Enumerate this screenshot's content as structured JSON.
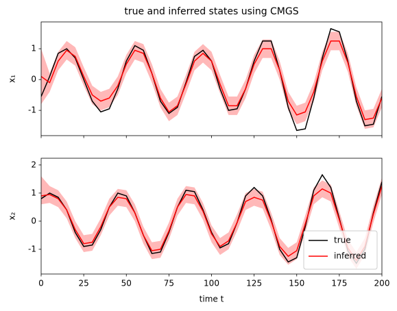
{
  "chart_data": [
    {
      "type": "line",
      "title": "true and inferred states using CMGS",
      "ylabel": "x₁",
      "x": [
        0,
        5,
        10,
        15,
        20,
        25,
        30,
        35,
        40,
        45,
        50,
        55,
        60,
        65,
        70,
        75,
        80,
        85,
        90,
        95,
        100,
        105,
        110,
        115,
        120,
        125,
        130,
        135,
        140,
        145,
        150,
        155,
        160,
        165,
        170,
        175,
        180,
        185,
        190,
        195,
        200
      ],
      "series": [
        {
          "name": "true",
          "color": "#000000",
          "values": [
            -0.55,
            0.1,
            0.85,
            1.0,
            0.7,
            0.0,
            -0.7,
            -1.05,
            -0.95,
            -0.3,
            0.6,
            1.1,
            0.95,
            0.2,
            -0.7,
            -1.1,
            -0.9,
            -0.1,
            0.75,
            0.95,
            0.6,
            -0.3,
            -1.0,
            -0.95,
            -0.3,
            0.6,
            1.25,
            1.25,
            0.3,
            -0.9,
            -1.65,
            -1.6,
            -0.6,
            0.7,
            1.65,
            1.55,
            0.6,
            -0.7,
            -1.5,
            -1.45,
            -0.55
          ]
        },
        {
          "name": "inferred",
          "color": "#ff0000",
          "values": [
            0.1,
            -0.1,
            0.6,
            0.95,
            0.75,
            0.1,
            -0.5,
            -0.7,
            -0.6,
            -0.2,
            0.5,
            0.95,
            0.85,
            0.2,
            -0.6,
            -1.05,
            -0.85,
            -0.15,
            0.6,
            0.85,
            0.6,
            -0.15,
            -0.85,
            -0.85,
            -0.3,
            0.5,
            1.0,
            1.0,
            0.3,
            -0.7,
            -1.15,
            -1.05,
            -0.4,
            0.6,
            1.25,
            1.25,
            0.55,
            -0.55,
            -1.3,
            -1.25,
            -0.6
          ]
        }
      ],
      "band": {
        "color": "#ff0000",
        "lower": [
          -0.8,
          -0.4,
          0.3,
          0.65,
          0.45,
          -0.2,
          -0.8,
          -1.0,
          -0.9,
          -0.5,
          0.2,
          0.65,
          0.55,
          -0.1,
          -0.9,
          -1.35,
          -1.15,
          -0.45,
          0.3,
          0.55,
          0.3,
          -0.45,
          -1.15,
          -1.15,
          -0.6,
          0.2,
          0.7,
          0.7,
          0.0,
          -1.0,
          -1.45,
          -1.35,
          -0.7,
          0.3,
          0.95,
          0.95,
          0.25,
          -0.85,
          -1.6,
          -1.55,
          -0.9
        ],
        "upper": [
          1.0,
          0.2,
          0.9,
          1.25,
          1.05,
          0.4,
          -0.2,
          -0.4,
          -0.3,
          0.1,
          0.8,
          1.25,
          1.15,
          0.5,
          -0.3,
          -0.75,
          -0.55,
          0.15,
          0.9,
          1.15,
          0.9,
          0.15,
          -0.55,
          -0.55,
          0.0,
          0.8,
          1.3,
          1.3,
          0.6,
          -0.4,
          -0.85,
          -0.75,
          -0.1,
          0.9,
          1.55,
          1.55,
          0.85,
          -0.25,
          -1.0,
          -0.95,
          -0.3
        ]
      },
      "xlim": [
        0,
        200
      ],
      "xticks": [
        0,
        25,
        50,
        75,
        100,
        125,
        150,
        175,
        200
      ],
      "xtick_labels": false,
      "ylim": [
        -1.82,
        1.87
      ],
      "yticks": [
        -1,
        0,
        1
      ],
      "legend": false
    },
    {
      "type": "line",
      "ylabel": "x₂",
      "xlabel": "time t",
      "x": [
        0,
        5,
        10,
        15,
        20,
        25,
        30,
        35,
        40,
        45,
        50,
        55,
        60,
        65,
        70,
        75,
        80,
        85,
        90,
        95,
        100,
        105,
        110,
        115,
        120,
        125,
        130,
        135,
        140,
        145,
        150,
        155,
        160,
        165,
        170,
        175,
        180,
        185,
        190,
        195,
        200
      ],
      "series": [
        {
          "name": "true",
          "color": "#000000",
          "values": [
            0.8,
            1.0,
            0.85,
            0.4,
            -0.4,
            -0.9,
            -0.85,
            -0.3,
            0.5,
            1.0,
            0.9,
            0.3,
            -0.5,
            -1.15,
            -1.1,
            -0.4,
            0.5,
            1.1,
            1.05,
            0.4,
            -0.4,
            -0.95,
            -0.8,
            -0.05,
            0.9,
            1.2,
            0.9,
            0.05,
            -1.0,
            -1.45,
            -1.3,
            -0.2,
            1.1,
            1.65,
            1.2,
            0.1,
            -1.05,
            -1.5,
            -1.0,
            0.3,
            1.4
          ]
        },
        {
          "name": "inferred",
          "color": "#ff0000",
          "values": [
            0.9,
            0.95,
            0.8,
            0.4,
            -0.3,
            -0.8,
            -0.75,
            -0.2,
            0.5,
            0.85,
            0.8,
            0.3,
            -0.5,
            -1.05,
            -1.0,
            -0.35,
            0.5,
            0.95,
            0.9,
            0.35,
            -0.45,
            -0.9,
            -0.7,
            -0.05,
            0.7,
            0.85,
            0.75,
            0.0,
            -0.9,
            -1.25,
            -1.05,
            -0.1,
            0.9,
            1.15,
            1.0,
            0.05,
            -0.95,
            -1.4,
            -0.9,
            0.25,
            1.25
          ]
        }
      ],
      "band": {
        "color": "#ff0000",
        "lower": [
          0.6,
          0.65,
          0.5,
          0.1,
          -0.6,
          -1.1,
          -1.05,
          -0.5,
          0.2,
          0.55,
          0.5,
          0.0,
          -0.8,
          -1.35,
          -1.3,
          -0.65,
          0.2,
          0.65,
          0.6,
          0.05,
          -0.75,
          -1.2,
          -1.0,
          -0.35,
          0.4,
          0.55,
          0.45,
          -0.3,
          -1.2,
          -1.55,
          -1.35,
          -0.4,
          0.6,
          0.85,
          0.7,
          -0.25,
          -1.25,
          -1.7,
          -1.2,
          -0.05,
          0.95
        ],
        "upper": [
          1.6,
          1.25,
          1.1,
          0.7,
          0.0,
          -0.5,
          -0.45,
          0.1,
          0.8,
          1.15,
          1.1,
          0.6,
          -0.2,
          -0.75,
          -0.7,
          -0.05,
          0.8,
          1.25,
          1.2,
          0.65,
          -0.15,
          -0.6,
          -0.4,
          0.25,
          1.0,
          1.15,
          1.05,
          0.3,
          -0.6,
          -0.95,
          -0.75,
          0.2,
          1.2,
          1.45,
          1.3,
          0.35,
          -0.65,
          -1.1,
          -0.6,
          0.55,
          1.55
        ]
      },
      "xlim": [
        0,
        200
      ],
      "xticks": [
        0,
        25,
        50,
        75,
        100,
        125,
        150,
        175,
        200
      ],
      "xtick_labels": true,
      "ylim": [
        -1.88,
        2.24
      ],
      "yticks": [
        -1,
        0,
        1,
        2
      ],
      "legend": "lower right"
    }
  ]
}
